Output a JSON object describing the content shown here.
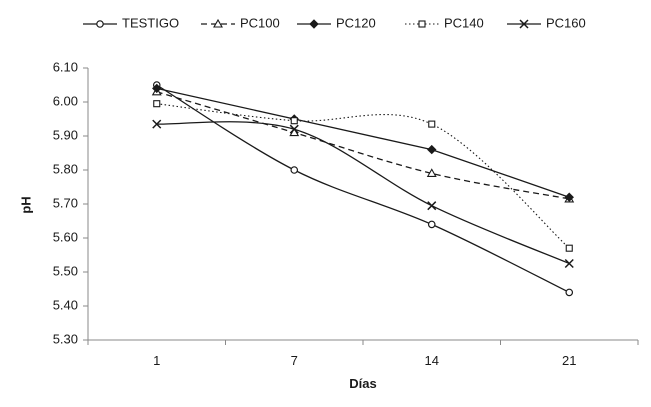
{
  "chart_data": {
    "type": "line",
    "title": "",
    "xlabel": "Días",
    "ylabel": "pH",
    "categories": [
      "1",
      "7",
      "14",
      "21"
    ],
    "ylim": [
      5.3,
      6.1
    ],
    "yticks": [
      "5.30",
      "5.40",
      "5.50",
      "5.60",
      "5.70",
      "5.80",
      "5.90",
      "6.00",
      "6.10"
    ],
    "grid": false,
    "legend_position": "top",
    "series": [
      {
        "name": "TESTIGO",
        "values": [
          6.05,
          5.8,
          5.64,
          5.44
        ],
        "marker": "circle",
        "dash": "solid",
        "smooth": true
      },
      {
        "name": "PC100",
        "values": [
          6.03,
          5.91,
          5.79,
          5.715
        ],
        "marker": "triangle",
        "dash": "dashed",
        "smooth": true
      },
      {
        "name": "PC120",
        "values": [
          6.04,
          5.95,
          5.86,
          5.72
        ],
        "marker": "diamond",
        "dash": "solid",
        "smooth": false
      },
      {
        "name": "PC140",
        "values": [
          5.995,
          5.945,
          5.935,
          5.57
        ],
        "marker": "square",
        "dash": "dotted",
        "smooth": true
      },
      {
        "name": "PC160",
        "values": [
          5.935,
          5.92,
          5.695,
          5.525
        ],
        "marker": "x",
        "dash": "solid",
        "smooth": true
      }
    ]
  }
}
